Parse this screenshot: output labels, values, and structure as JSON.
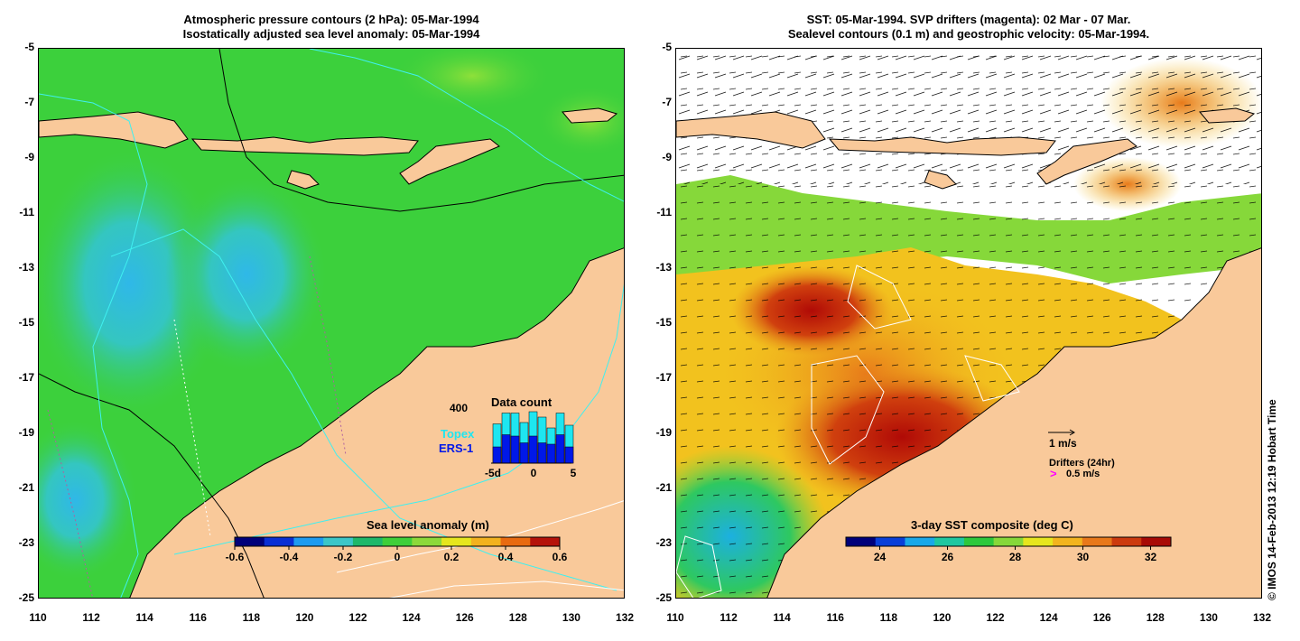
{
  "left_panel": {
    "title_line1": "Atmospheric pressure contours (2 hPa): 05-Mar-1994",
    "title_line2": "Isostatically adjusted sea level anomaly: 05-Mar-1994",
    "colorbar_label": "Sea level anomaly (m)",
    "colorbar_ticks": [
      "-0.6",
      "-0.4",
      "-0.2",
      "0",
      "0.2",
      "0.4",
      "0.6"
    ],
    "colorbar_colors": [
      "#00007a",
      "#0a2fd4",
      "#1e9bf0",
      "#3cc6c8",
      "#1fb86a",
      "#3fcf3a",
      "#8cd93a",
      "#e6e61e",
      "#f2b21e",
      "#e86a10",
      "#b5120a"
    ],
    "data_count": {
      "title": "Data count",
      "y_label": "400",
      "x_labels": [
        "-5d",
        "0",
        "5"
      ],
      "topex_label": "Topex",
      "ers_label": "ERS-1",
      "topex_color": "#1ee6f0",
      "ers_color": "#0018e8",
      "topex_totals": [
        290,
        370,
        370,
        300,
        380,
        340,
        260,
        370,
        280
      ],
      "ers_counts": [
        120,
        210,
        200,
        150,
        200,
        150,
        140,
        210,
        120
      ]
    }
  },
  "right_panel": {
    "title_line1": "SST: 05-Mar-1994. SVP drifters (magenta): 02 Mar - 07 Mar.",
    "title_line2": "Sealevel contours (0.1 m) and geostrophic velocity: 05-Mar-1994.",
    "colorbar_label": "3-day SST composite (deg C)",
    "colorbar_ticks": [
      "24",
      "26",
      "28",
      "30",
      "32"
    ],
    "colorbar_colors": [
      "#00007a",
      "#0a3fd8",
      "#1aa8e8",
      "#20c7a0",
      "#2ec83c",
      "#86d83a",
      "#e6e61e",
      "#f2b41e",
      "#e8781a",
      "#cc3a0e",
      "#a80a06"
    ],
    "velocity_label": "1 m/s",
    "drifters_label": "Drifters (24hr)",
    "drifter_speed_label": "0.5 m/s",
    "drifter_color": "#ff00ff"
  },
  "axes": {
    "y_ticks": [
      "-5",
      "-7",
      "-9",
      "-11",
      "-13",
      "-15",
      "-17",
      "-19",
      "-21",
      "-23",
      "-25"
    ],
    "x_ticks": [
      "110",
      "112",
      "114",
      "116",
      "118",
      "120",
      "122",
      "124",
      "126",
      "128",
      "130",
      "132"
    ],
    "lat_range": [
      -25,
      -5
    ],
    "lon_range": [
      110,
      132
    ]
  },
  "colors": {
    "land": "#f9c99a",
    "ocean_green": "#3cd03c",
    "white_cloud": "#ffffff"
  },
  "credit": "© IMOS 14-Feb-2013 12:19 Hobart Time"
}
